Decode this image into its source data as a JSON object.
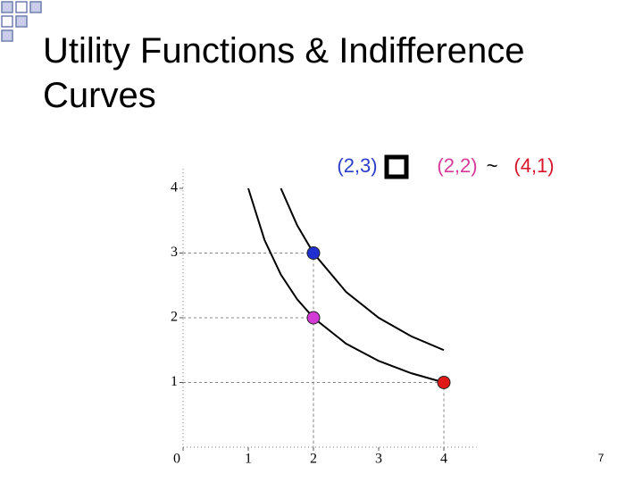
{
  "slide": {
    "title_lines": [
      "Utility Functions & Indifference",
      "Curves"
    ],
    "page_number": "7"
  },
  "chart_data": {
    "type": "indifference",
    "annotation": [
      {
        "text": "(2,3)",
        "color": "#2b3fc9"
      },
      {
        "text": "(2,2)",
        "color": "#d63a9a"
      },
      {
        "text": "~",
        "color": "#000000"
      },
      {
        "text": "(4,1)",
        "color": "#d8152a"
      }
    ],
    "curves": [
      {
        "color": "#000000",
        "x": [
          1,
          1.25,
          1.5,
          1.75,
          2,
          2.5,
          3,
          3.5,
          4
        ],
        "values": [
          4,
          3.2,
          2.667,
          2.286,
          2,
          1.6,
          1.333,
          1.143,
          1
        ]
      },
      {
        "color": "#000000",
        "x": [
          1.5,
          1.75,
          2,
          2.5,
          3,
          3.5,
          4
        ],
        "values": [
          4,
          3.429,
          3,
          2.4,
          2,
          1.714,
          1.5
        ]
      }
    ],
    "points": [
      {
        "x": 2,
        "y": 3,
        "color": "#1f2fd0"
      },
      {
        "x": 2,
        "y": 2,
        "color": "#d23ad6"
      },
      {
        "x": 4,
        "y": 1,
        "color": "#e01818"
      }
    ],
    "xlim": [
      0,
      4.5
    ],
    "ylim": [
      0,
      4.3
    ],
    "xticks": [
      0,
      1,
      2,
      3,
      4
    ],
    "yticks": [
      1,
      2,
      3,
      4
    ]
  }
}
